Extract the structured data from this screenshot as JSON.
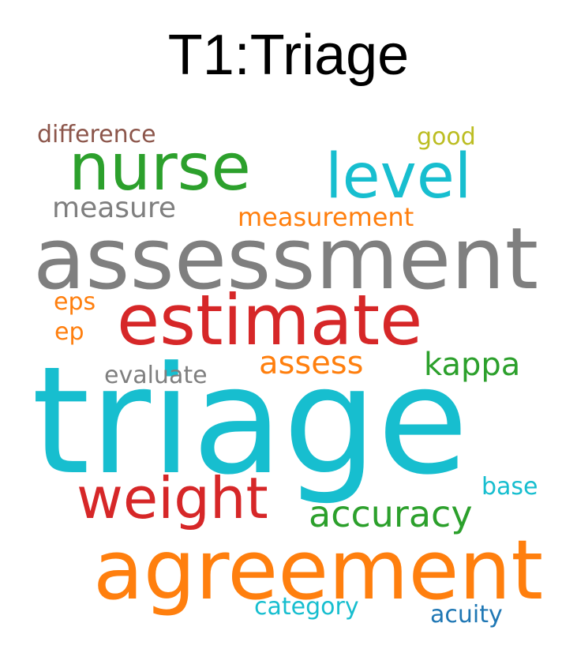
{
  "title": "T1:Triage",
  "words": [
    {
      "key": "triage",
      "text": "triage",
      "color": "#17becf"
    },
    {
      "key": "assessment",
      "text": "assessment",
      "color": "#7f7f7f"
    },
    {
      "key": "agreement",
      "text": "agreement",
      "color": "#ff7f0e"
    },
    {
      "key": "estimate",
      "text": "estimate",
      "color": "#d62728"
    },
    {
      "key": "nurse",
      "text": "nurse",
      "color": "#2ca02c"
    },
    {
      "key": "level",
      "text": "level",
      "color": "#17becf"
    },
    {
      "key": "weight",
      "text": "weight",
      "color": "#d62728"
    },
    {
      "key": "accuracy",
      "text": "accuracy",
      "color": "#2ca02c"
    },
    {
      "key": "kappa",
      "text": "kappa",
      "color": "#2ca02c"
    },
    {
      "key": "assess",
      "text": "assess",
      "color": "#ff7f0e"
    },
    {
      "key": "measure",
      "text": "measure",
      "color": "#7f7f7f"
    },
    {
      "key": "measurement",
      "text": "measurement",
      "color": "#ff7f0e"
    },
    {
      "key": "eps",
      "text": "eps",
      "color": "#ff7f0e"
    },
    {
      "key": "ep",
      "text": "ep",
      "color": "#ff7f0e"
    },
    {
      "key": "evaluate",
      "text": "evaluate",
      "color": "#7f7f7f"
    },
    {
      "key": "difference",
      "text": "difference",
      "color": "#8c564b"
    },
    {
      "key": "good",
      "text": "good",
      "color": "#bcbd22"
    },
    {
      "key": "base",
      "text": "base",
      "color": "#17becf"
    },
    {
      "key": "category",
      "text": "category",
      "color": "#17becf"
    },
    {
      "key": "acuity",
      "text": "acuity",
      "color": "#1f77b4"
    }
  ]
}
